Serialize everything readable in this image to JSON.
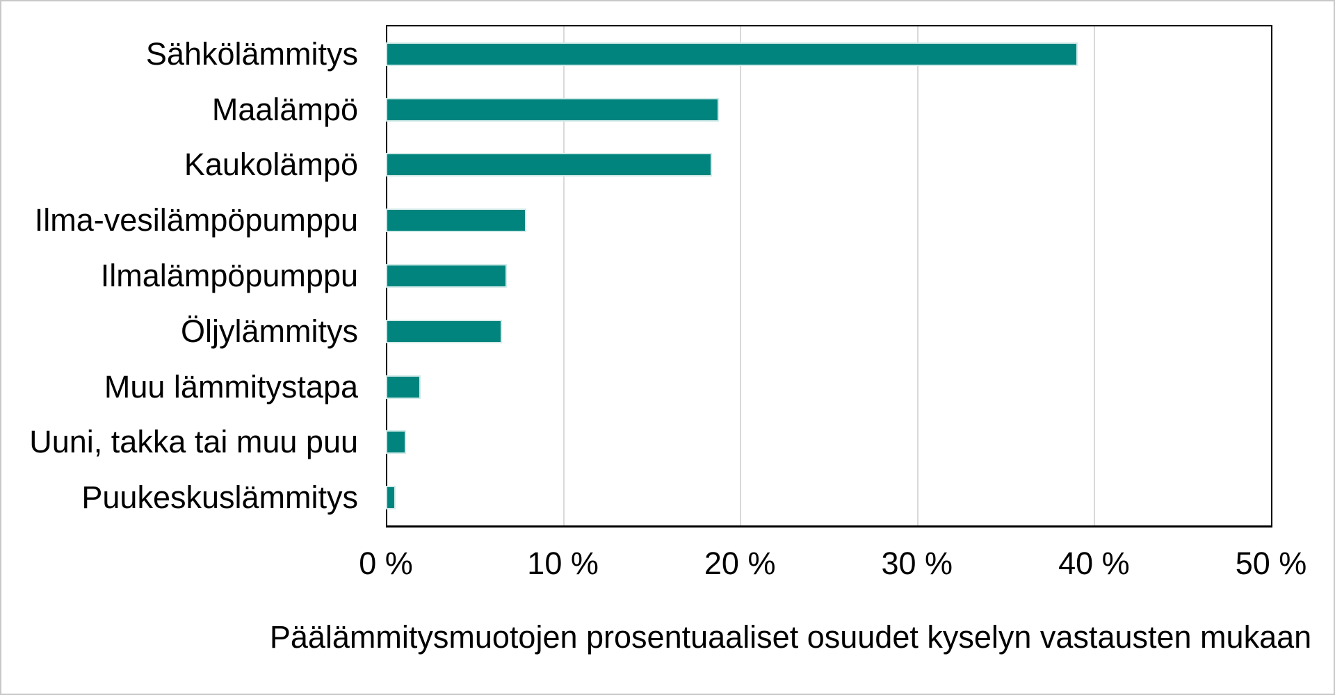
{
  "chart_data": {
    "type": "bar",
    "orientation": "horizontal",
    "caption": "Päälämmitysmuotojen prosentuaaliset osuudet kyselyn vastausten mukaan",
    "categories": [
      "Sähkölämmitys",
      "Maalämpö",
      "Kaukolämpö",
      "Ilma-vesilämpöpumppu",
      "Ilmalämpöpumppu",
      "Öljylämmitys",
      "Muu lämmitystapa",
      "Uuni, takka tai muu puu",
      "Puukeskuslämmitys"
    ],
    "values": [
      39,
      18.7,
      18.3,
      7.8,
      6.7,
      6.4,
      1.8,
      1.0,
      0.4
    ],
    "unit": "%",
    "xlabel": "",
    "ylabel": "",
    "x_axis": {
      "min": 0,
      "max": 50,
      "tick_values": [
        0,
        10,
        20,
        30,
        40,
        50
      ],
      "tick_labels": [
        "0 %",
        "10 %",
        "20 %",
        "30 %",
        "40 %",
        "50 %"
      ]
    },
    "grid": "vertical gridlines every 10 %",
    "legend": false,
    "colors": {
      "bar_fill": "#00847d",
      "bar_edge": "#d2ebe9",
      "gridline": "#d9d9d9",
      "plot_frame": "#000000",
      "text": "#000000",
      "background": "#ffffff",
      "canvas_border": "#c8c8c8"
    }
  }
}
